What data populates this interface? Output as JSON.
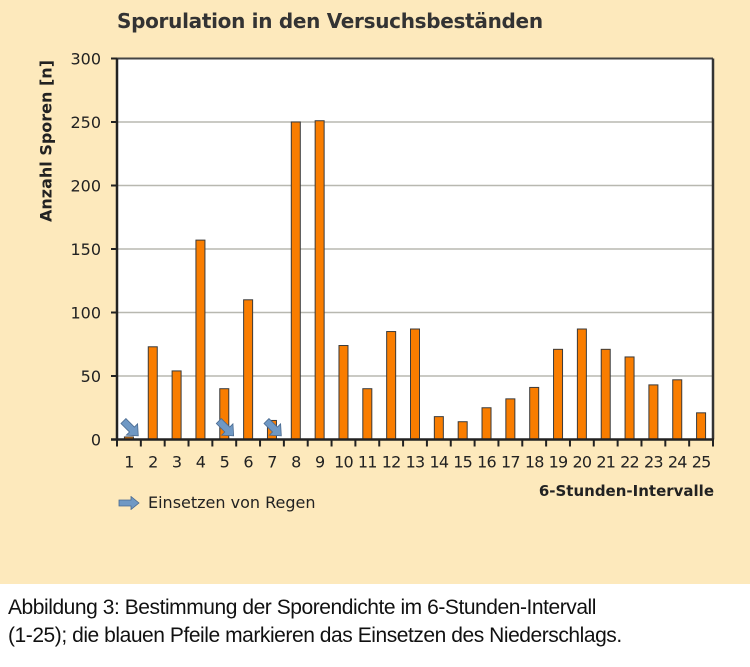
{
  "figure": {
    "caption": "Abbildung 3: Bestimmung der Sporendichte im 6-Stunden-Intervall (1-25); die blauen Pfeile markieren das Einsetzen des Niederschlags.",
    "caption_line1": "Abbildung 3: Bestimmung der Sporendichte im 6-Stunden-Intervall",
    "caption_line2": "(1-25); die blauen Pfeile markieren das Einsetzen des Niederschlags."
  },
  "legend": {
    "label": "Einsetzen von Regen",
    "icon": "blue-arrow-icon"
  },
  "colors": {
    "background": "#fde9bc",
    "bar": "#f97d00",
    "bar_stroke": "#3a3a3a",
    "arrow": "#6f98c4",
    "grid": "#b8b8b0",
    "axis": "#222222"
  },
  "chart_data": {
    "type": "bar",
    "title": "Sporulation in den Versuchsbeständen",
    "xlabel": "6-Stunden-Intervalle",
    "ylabel": "Anzahl Sporen [n]",
    "ylim": [
      0,
      300
    ],
    "yticks": [
      0,
      50,
      100,
      150,
      200,
      250,
      300
    ],
    "ytick_labels": [
      "0",
      "50",
      "100",
      "150",
      "200",
      "250",
      "300"
    ],
    "grid": true,
    "categories": [
      "1",
      "2",
      "3",
      "4",
      "5",
      "6",
      "7",
      "8",
      "9",
      "10",
      "11",
      "12",
      "13",
      "14",
      "15",
      "16",
      "17",
      "18",
      "19",
      "20",
      "21",
      "22",
      "23",
      "24",
      "25"
    ],
    "values": [
      2,
      73,
      54,
      157,
      40,
      110,
      15,
      250,
      251,
      74,
      40,
      85,
      87,
      18,
      14,
      25,
      32,
      41,
      71,
      87,
      71,
      65,
      43,
      47,
      21
    ],
    "rain_onset_intervals": [
      1,
      5,
      7
    ],
    "legend_position": "bottom-left"
  }
}
